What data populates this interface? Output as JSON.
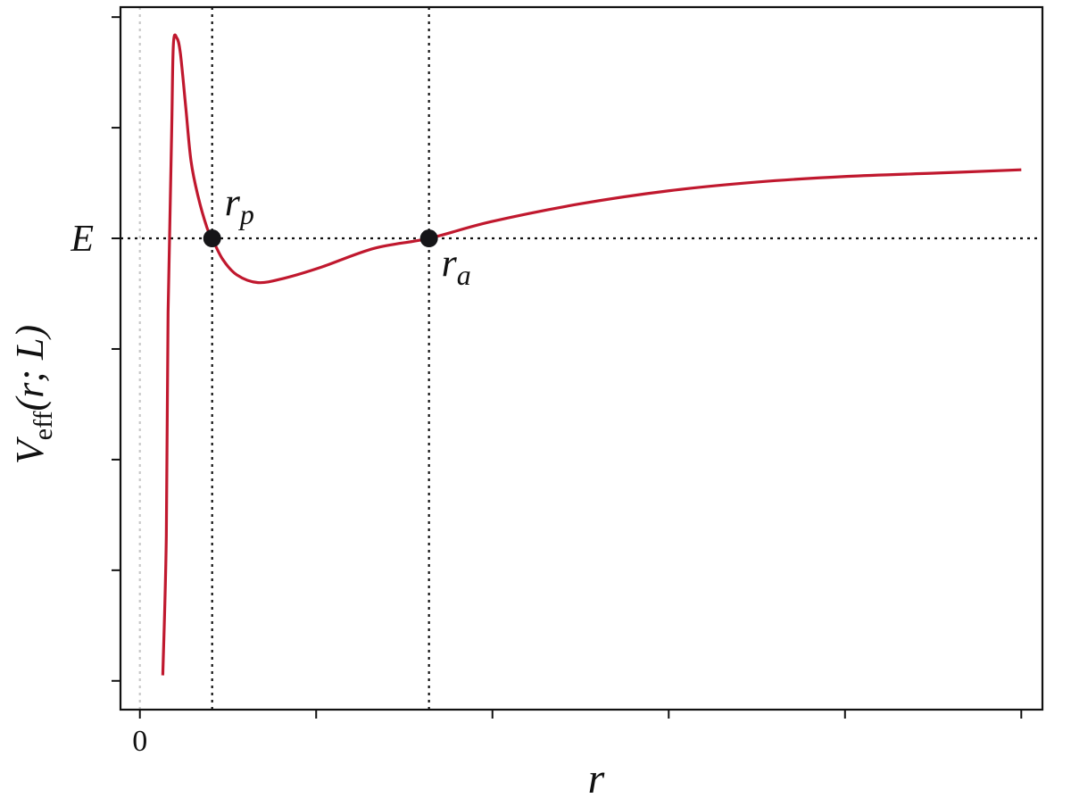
{
  "chart_data": {
    "type": "line",
    "xlabel": "r",
    "ylabel": "V",
    "ylabel_sub": "eff",
    "ylabel_rest": "(r; L)",
    "xlim": [
      -0.11,
      5.12
    ],
    "ylim": [
      -4.26,
      2.09
    ],
    "xticks": [
      0
    ],
    "x_unlabeled_ticks": [
      1,
      2,
      3,
      4,
      5
    ],
    "yticks": [
      {
        "value": 0,
        "label": "E"
      }
    ],
    "y_unlabeled_ticks": [
      -4,
      -3,
      -2,
      -1,
      1,
      2
    ],
    "series": [
      {
        "color": "#c0182e",
        "x": [
          0.13,
          0.15,
          0.16,
          0.18,
          0.19,
          0.21,
          0.23,
          0.26,
          0.29,
          0.33,
          0.38,
          0.41,
          0.47,
          0.55,
          0.67,
          0.82,
          1.03,
          1.33,
          1.64,
          1.99,
          2.49,
          3.0,
          3.51,
          4.01,
          4.52,
          5.0
        ],
        "values": [
          -3.95,
          -2.69,
          -0.67,
          0.94,
          1.75,
          1.81,
          1.67,
          1.19,
          0.7,
          0.38,
          0.1,
          0,
          -0.19,
          -0.33,
          -0.4,
          -0.36,
          -0.26,
          -0.09,
          0,
          0.15,
          0.31,
          0.43,
          0.51,
          0.56,
          0.59,
          0.62
        ]
      }
    ],
    "points": [
      {
        "label": "r",
        "subscript": "p",
        "x": 0.41,
        "y": 0
      },
      {
        "label": "r",
        "subscript": "a",
        "x": 1.64,
        "y": 0
      }
    ]
  }
}
